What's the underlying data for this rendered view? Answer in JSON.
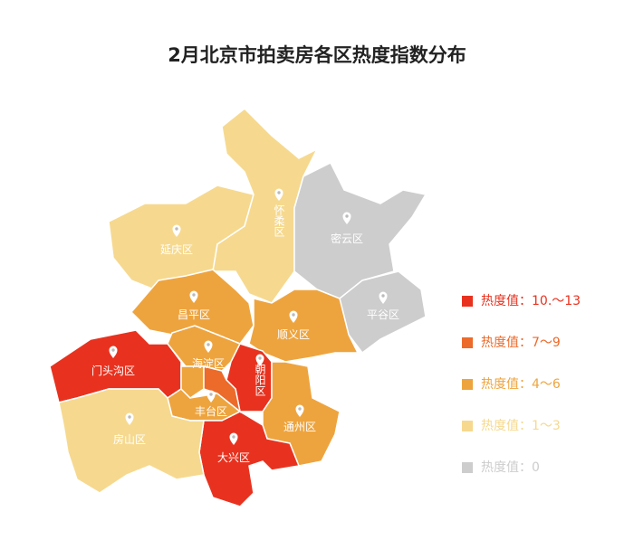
{
  "title": "2月北京市拍卖房各区热度指数分布",
  "legend": [
    {
      "label": "热度值：10.～13",
      "color": "#e8321f"
    },
    {
      "label": "热度值：7～9",
      "color": "#ec6a2a"
    },
    {
      "label": "热度值：4～6",
      "color": "#eea43e"
    },
    {
      "label": "热度值：1～3",
      "color": "#f6d98f"
    },
    {
      "label": "热度值：0",
      "color": "#cdcdcd"
    }
  ],
  "districts": [
    {
      "name": "延庆区",
      "level": 3
    },
    {
      "name": "怀柔区",
      "level": 3
    },
    {
      "name": "密云区",
      "level": 4
    },
    {
      "name": "平谷区",
      "level": 4
    },
    {
      "name": "昌平区",
      "level": 2
    },
    {
      "name": "顺义区",
      "level": 2
    },
    {
      "name": "门头沟区",
      "level": 0
    },
    {
      "name": "海淀区",
      "level": 2
    },
    {
      "name": "朝阳区",
      "level": 0
    },
    {
      "name": "丰台区",
      "level": 2
    },
    {
      "name": "通州区",
      "level": 2
    },
    {
      "name": "大兴区",
      "level": 0
    },
    {
      "name": "房山区",
      "level": 3
    },
    {
      "name": null,
      "level": 2
    },
    {
      "name": null,
      "level": 1
    }
  ]
}
